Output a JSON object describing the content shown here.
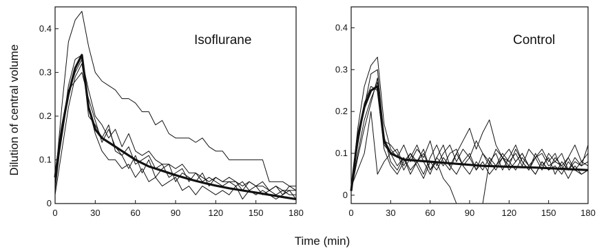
{
  "figure": {
    "ylabel": "Dilution of central volume",
    "xlabel": "Time (min)"
  },
  "chart_data": [
    {
      "type": "line",
      "panel_label": "Isoflurane",
      "xlim": [
        0,
        180
      ],
      "ylim": [
        0,
        0.45
      ],
      "xticks": [
        "0",
        "30",
        "60",
        "90",
        "120",
        "150",
        "180"
      ],
      "yticks": [
        "0",
        "0.1",
        "0.2",
        "0.3",
        "0.4"
      ],
      "ytick_values": [
        0,
        0.1,
        0.2,
        0.3,
        0.4
      ],
      "grid": false,
      "series": [
        {
          "style": "thin",
          "x": [
            0,
            5,
            10,
            15,
            20,
            25,
            30,
            35,
            40,
            45,
            50,
            55,
            60,
            65,
            70,
            75,
            80,
            85,
            90,
            95,
            100,
            105,
            110,
            115,
            120,
            125,
            130,
            135,
            140,
            145,
            150,
            155,
            160,
            165,
            170,
            175,
            180
          ],
          "y": [
            0.05,
            0.22,
            0.37,
            0.42,
            0.44,
            0.36,
            0.3,
            0.28,
            0.27,
            0.26,
            0.24,
            0.24,
            0.23,
            0.21,
            0.21,
            0.18,
            0.19,
            0.16,
            0.15,
            0.15,
            0.15,
            0.14,
            0.15,
            0.13,
            0.12,
            0.12,
            0.1,
            0.1,
            0.1,
            0.1,
            0.1,
            0.1,
            0.05,
            0.05,
            0.05,
            0.04,
            0.04
          ]
        },
        {
          "style": "thin",
          "x": [
            0,
            5,
            10,
            15,
            20,
            25,
            30,
            35,
            40,
            45,
            50,
            55,
            60,
            65,
            70,
            75,
            80,
            85,
            90,
            95,
            100,
            105,
            110,
            115,
            120,
            125,
            130,
            135,
            140,
            145,
            150,
            155,
            160,
            165,
            170,
            175,
            180
          ],
          "y": [
            0.05,
            0.15,
            0.25,
            0.3,
            0.33,
            0.26,
            0.2,
            0.18,
            0.15,
            0.17,
            0.13,
            0.16,
            0.12,
            0.11,
            0.12,
            0.1,
            0.09,
            0.09,
            0.08,
            0.09,
            0.07,
            0.07,
            0.06,
            0.05,
            0.06,
            0.05,
            0.05,
            0.05,
            0.04,
            0.05,
            0.04,
            0.04,
            0.03,
            0.04,
            0.03,
            0.03,
            0.03
          ]
        },
        {
          "style": "thin",
          "x": [
            0,
            5,
            10,
            15,
            20,
            25,
            30,
            35,
            40,
            45,
            50,
            55,
            60,
            65,
            70,
            75,
            80,
            85,
            90,
            95,
            100,
            105,
            110,
            115,
            120,
            125,
            130,
            135,
            140,
            145,
            150,
            155,
            160,
            165,
            170,
            175,
            180
          ],
          "y": [
            0.02,
            0.12,
            0.22,
            0.29,
            0.32,
            0.22,
            0.16,
            0.12,
            0.1,
            0.1,
            0.08,
            0.09,
            0.06,
            0.08,
            0.05,
            0.06,
            0.04,
            0.05,
            0.06,
            0.03,
            0.04,
            0.02,
            0.04,
            0.03,
            0.02,
            0.03,
            0.02,
            0.04,
            0.01,
            0.03,
            0.02,
            0.03,
            0.02,
            0.01,
            0.02,
            0.03,
            0.01
          ]
        },
        {
          "style": "thin",
          "x": [
            0,
            5,
            10,
            15,
            20,
            25,
            30,
            35,
            40,
            45,
            50,
            55,
            60,
            65,
            70,
            75,
            80,
            85,
            90,
            95,
            100,
            105,
            110,
            115,
            120,
            125,
            130,
            135,
            140,
            145,
            150,
            155,
            160,
            165,
            170,
            175,
            180
          ],
          "y": [
            0.03,
            0.16,
            0.27,
            0.33,
            0.34,
            0.2,
            0.18,
            0.15,
            0.18,
            0.12,
            0.11,
            0.08,
            0.11,
            0.07,
            0.1,
            0.06,
            0.08,
            0.09,
            0.05,
            0.07,
            0.06,
            0.05,
            0.07,
            0.04,
            0.06,
            0.05,
            0.06,
            0.05,
            0.03,
            0.05,
            0.04,
            0.05,
            0.03,
            0.04,
            0.02,
            0.04,
            0.03
          ]
        },
        {
          "style": "thin",
          "x": [
            0,
            5,
            10,
            15,
            20,
            25,
            30,
            35,
            40,
            45,
            50,
            55,
            60,
            65,
            70,
            75,
            80,
            85,
            90,
            95,
            100,
            105,
            110,
            115,
            120,
            125,
            130,
            135,
            140,
            145,
            150,
            155,
            160,
            165,
            170,
            175,
            180
          ],
          "y": [
            0.04,
            0.18,
            0.26,
            0.28,
            0.3,
            0.24,
            0.19,
            0.14,
            0.17,
            0.13,
            0.11,
            0.13,
            0.09,
            0.1,
            0.11,
            0.08,
            0.09,
            0.06,
            0.07,
            0.08,
            0.05,
            0.07,
            0.05,
            0.06,
            0.05,
            0.04,
            0.05,
            0.04,
            0.05,
            0.03,
            0.04,
            0.02,
            0.03,
            0.02,
            0.03,
            0.02,
            0.02
          ]
        },
        {
          "style": "thick",
          "x": [
            0,
            5,
            10,
            15,
            20,
            25,
            30,
            35,
            40,
            50,
            60,
            70,
            80,
            90,
            100,
            110,
            120,
            130,
            140,
            150,
            160,
            170,
            180
          ],
          "y": [
            0.06,
            0.17,
            0.25,
            0.31,
            0.34,
            0.22,
            0.17,
            0.15,
            0.14,
            0.12,
            0.1,
            0.085,
            0.075,
            0.065,
            0.056,
            0.048,
            0.041,
            0.035,
            0.03,
            0.025,
            0.02,
            0.015,
            0.01
          ]
        }
      ]
    },
    {
      "type": "line",
      "panel_label": "Control",
      "xlim": [
        0,
        180
      ],
      "ylim": [
        -0.02,
        0.45
      ],
      "xticks": [
        "0",
        "30",
        "60",
        "90",
        "120",
        "150",
        "180"
      ],
      "yticks": [
        "0",
        "0.1",
        "0.2",
        "0.3",
        "0.4"
      ],
      "ytick_values": [
        0,
        0.1,
        0.2,
        0.3,
        0.4
      ],
      "grid": false,
      "series": [
        {
          "style": "thin",
          "x": [
            0,
            5,
            10,
            15,
            20,
            25,
            30,
            35,
            40,
            45,
            50,
            55,
            60,
            65,
            70,
            75,
            80,
            85,
            90,
            95,
            100,
            105,
            110,
            115,
            120,
            125,
            130,
            135,
            140,
            145,
            150,
            155,
            160,
            165,
            170,
            175,
            180
          ],
          "y": [
            0.01,
            0.16,
            0.26,
            0.31,
            0.33,
            0.17,
            0.11,
            0.09,
            0.12,
            0.08,
            0.11,
            0.09,
            0.13,
            0.07,
            0.1,
            0.12,
            0.08,
            0.11,
            0.09,
            0.13,
            0.1,
            0.07,
            0.11,
            0.09,
            0.08,
            0.1,
            0.07,
            0.11,
            0.09,
            0.06,
            0.1,
            0.08,
            0.07,
            0.09,
            0.06,
            0.08,
            0.07
          ]
        },
        {
          "style": "thin",
          "x": [
            0,
            5,
            10,
            15,
            20,
            25,
            30,
            35,
            40,
            45,
            50,
            55,
            60,
            65,
            70,
            75,
            80,
            85,
            90,
            95,
            100,
            105,
            110,
            115,
            120,
            125,
            130,
            135,
            140,
            145,
            150,
            155,
            160,
            165,
            170,
            175,
            180
          ],
          "y": [
            0.02,
            0.12,
            0.21,
            0.29,
            0.3,
            0.14,
            0.08,
            0.06,
            0.09,
            0.05,
            0.08,
            0.11,
            0.06,
            0.09,
            0.12,
            0.07,
            0.1,
            0.13,
            0.16,
            0.11,
            0.15,
            0.18,
            0.12,
            0.09,
            0.11,
            0.08,
            0.1,
            0.07,
            0.09,
            0.11,
            0.08,
            0.1,
            0.06,
            0.09,
            0.12,
            0.08,
            0.1
          ]
        },
        {
          "style": "thin",
          "x": [
            0,
            5,
            10,
            15,
            20,
            25,
            30,
            35,
            40,
            45,
            50,
            55,
            60,
            65,
            70,
            75,
            80,
            85,
            90,
            95,
            100,
            105,
            110,
            115,
            120,
            125,
            130,
            135,
            140,
            145,
            150,
            155,
            160,
            165,
            170,
            175,
            180
          ],
          "y": [
            0.01,
            0.1,
            0.18,
            0.23,
            0.27,
            0.12,
            0.1,
            0.11,
            0.07,
            0.1,
            0.08,
            0.05,
            0.09,
            0.12,
            0.08,
            0.06,
            0.1,
            0.07,
            0.05,
            0.08,
            0.06,
            0.09,
            0.07,
            0.1,
            0.08,
            0.06,
            0.09,
            0.07,
            0.05,
            0.08,
            0.06,
            0.07,
            0.05,
            0.08,
            0.06,
            0.05,
            0.06
          ]
        },
        {
          "style": "thin",
          "x": [
            0,
            5,
            10,
            15,
            20,
            25,
            30,
            35,
            40,
            45,
            50,
            55,
            60,
            65,
            70,
            75,
            80,
            85,
            90,
            95,
            100,
            105,
            110,
            115,
            120,
            125,
            130,
            135,
            140,
            145,
            150,
            155,
            160,
            165,
            170,
            175,
            180
          ],
          "y": [
            0.02,
            0.06,
            0.1,
            0.2,
            0.05,
            0.08,
            0.1,
            0.07,
            0.09,
            0.06,
            0.08,
            0.1,
            0.06,
            0.08,
            0.04,
            0.02,
            -0.02,
            -0.02,
            -0.02,
            -0.02,
            -0.02,
            0.08,
            0.1,
            0.06,
            0.09,
            0.12,
            0.08,
            0.06,
            0.1,
            0.07,
            0.09,
            0.05,
            0.08,
            0.06,
            0.09,
            0.07,
            0.08
          ]
        },
        {
          "style": "thin",
          "x": [
            0,
            5,
            10,
            15,
            20,
            25,
            30,
            35,
            40,
            45,
            50,
            55,
            60,
            65,
            70,
            75,
            80,
            85,
            90,
            95,
            100,
            105,
            110,
            115,
            120,
            125,
            130,
            135,
            140,
            145,
            150,
            155,
            160,
            165,
            170,
            175,
            180
          ],
          "y": [
            0.01,
            0.14,
            0.22,
            0.26,
            0.25,
            0.11,
            0.07,
            0.05,
            0.08,
            0.1,
            0.07,
            0.04,
            0.08,
            0.06,
            0.09,
            0.07,
            0.05,
            0.08,
            0.1,
            0.06,
            0.08,
            0.05,
            0.07,
            0.09,
            0.06,
            0.08,
            0.1,
            0.07,
            0.05,
            0.08,
            0.06,
            0.09,
            0.07,
            0.04,
            0.07,
            0.05,
            0.06
          ]
        },
        {
          "style": "thin",
          "x": [
            0,
            5,
            10,
            15,
            20,
            25,
            30,
            35,
            40,
            45,
            50,
            55,
            60,
            65,
            70,
            75,
            80,
            85,
            90,
            95,
            100,
            105,
            110,
            115,
            120,
            125,
            130,
            135,
            140,
            145,
            150,
            155,
            160,
            165,
            170,
            175,
            180
          ],
          "y": [
            0.01,
            0.09,
            0.16,
            0.22,
            0.28,
            0.13,
            0.12,
            0.1,
            0.06,
            0.09,
            0.12,
            0.08,
            0.05,
            0.09,
            0.07,
            0.1,
            0.11,
            0.07,
            0.09,
            0.06,
            0.1,
            0.08,
            0.06,
            0.09,
            0.07,
            0.11,
            0.08,
            0.06,
            0.09,
            0.1,
            0.07,
            0.08,
            0.1,
            0.06,
            0.08,
            0.07,
            0.12
          ]
        },
        {
          "style": "thick",
          "x": [
            0,
            5,
            10,
            15,
            20,
            25,
            30,
            40,
            60,
            80,
            100,
            120,
            140,
            160,
            180
          ],
          "y": [
            0.01,
            0.14,
            0.21,
            0.25,
            0.26,
            0.13,
            0.1,
            0.085,
            0.08,
            0.075,
            0.07,
            0.068,
            0.066,
            0.063,
            0.06
          ]
        }
      ]
    }
  ]
}
